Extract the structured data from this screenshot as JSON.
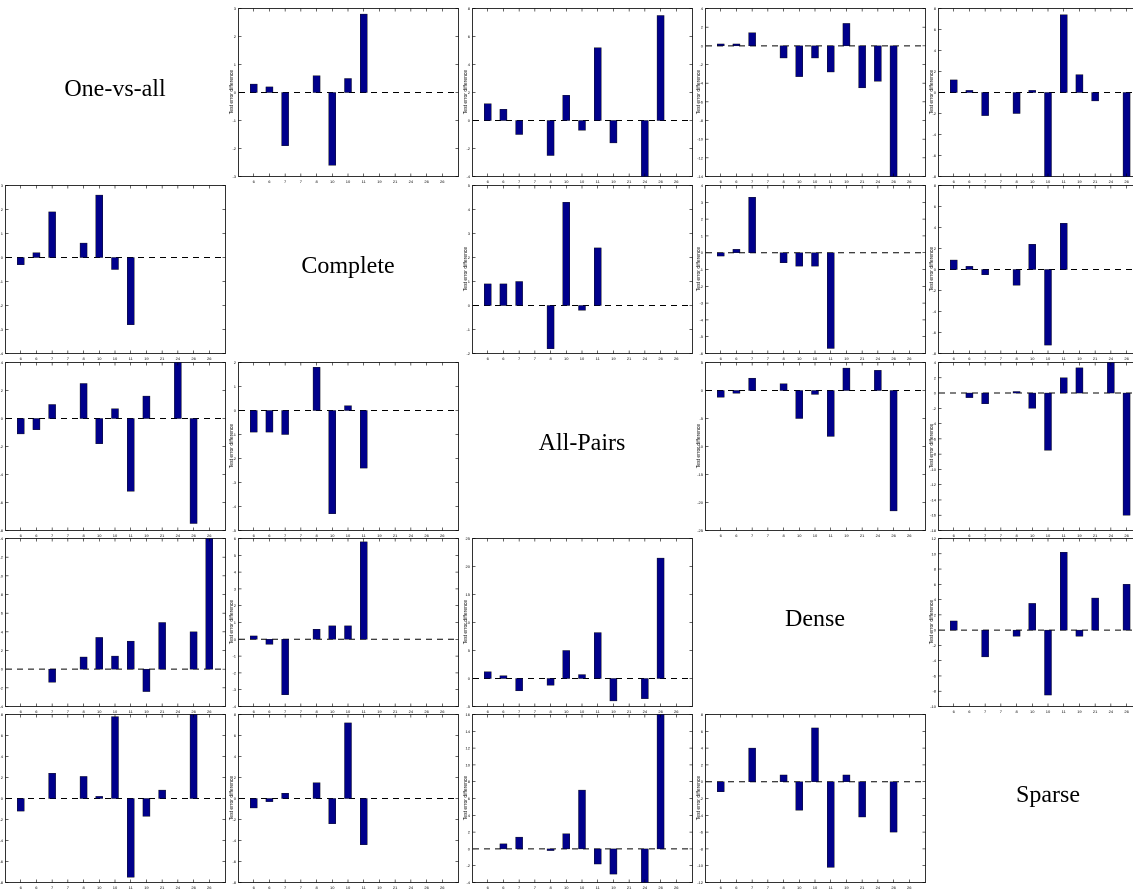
{
  "methods": [
    "One-vs-all",
    "Complete",
    "All-Pairs",
    "Dense",
    "Sparse"
  ],
  "chart_data": {
    "type": "bar",
    "layout": "5x5 pairwise matrix; diagonal cells hold method names, off-diagonal cells hold bar charts",
    "ylabel": "Test error difference",
    "categories": [
      "6",
      "6",
      "7",
      "7",
      "8",
      "10",
      "10",
      "11",
      "19",
      "21",
      "24",
      "26",
      "26"
    ],
    "grid": false,
    "bar_color": "#00008b",
    "zero_line": "dashed",
    "panels": [
      {
        "row": 0,
        "col": 1,
        "ylim": [
          -3,
          3
        ],
        "yticks": [
          -3,
          -2,
          -1,
          0,
          1,
          2,
          3
        ],
        "values": [
          0.3,
          0.2,
          -1.9,
          0,
          0.6,
          -2.6,
          0.5,
          2.8,
          0,
          0,
          0,
          0,
          0
        ]
      },
      {
        "row": 0,
        "col": 2,
        "ylim": [
          -4,
          8
        ],
        "yticks": [
          -4,
          -2,
          0,
          2,
          4,
          6,
          8
        ],
        "values": [
          1.2,
          0.8,
          -1.0,
          0,
          -2.5,
          1.8,
          -0.7,
          5.2,
          -1.6,
          0,
          -4.0,
          7.5,
          0
        ]
      },
      {
        "row": 0,
        "col": 3,
        "ylim": [
          -14,
          4
        ],
        "yticks": [
          -14,
          -12,
          -10,
          -8,
          -6,
          -4,
          -2,
          0,
          2,
          4
        ],
        "values": [
          0.2,
          0.2,
          1.4,
          0,
          -1.3,
          -3.3,
          -1.3,
          -2.8,
          2.4,
          -4.5,
          -3.8,
          -14.0,
          0
        ]
      },
      {
        "row": 0,
        "col": 4,
        "ylim": [
          -8,
          8
        ],
        "yticks": [
          -8,
          -6,
          -4,
          -2,
          0,
          2,
          4,
          6,
          8
        ],
        "values": [
          1.2,
          0.2,
          -2.2,
          0,
          -2.0,
          0.2,
          -8.0,
          7.4,
          1.7,
          -0.8,
          0,
          -8.0,
          0
        ]
      },
      {
        "row": 1,
        "col": 0,
        "ylim": [
          -4,
          3
        ],
        "yticks": [
          -4,
          -3,
          -2,
          -1,
          0,
          1,
          2,
          3
        ],
        "values": [
          -0.3,
          0.2,
          1.9,
          0,
          0.6,
          2.6,
          -0.5,
          -2.8,
          0,
          0,
          0,
          0,
          0
        ]
      },
      {
        "row": 1,
        "col": 2,
        "ylim": [
          -2,
          5
        ],
        "yticks": [
          -2,
          -1,
          0,
          1,
          2,
          3,
          4,
          5
        ],
        "values": [
          0.9,
          0.9,
          1.0,
          0,
          -1.8,
          4.3,
          -0.2,
          2.4,
          0,
          0,
          0,
          0,
          0
        ]
      },
      {
        "row": 1,
        "col": 3,
        "ylim": [
          -6,
          4
        ],
        "yticks": [
          -6,
          -5,
          -4,
          -3,
          -2,
          -1,
          0,
          1,
          2,
          3,
          4
        ],
        "values": [
          -0.2,
          0.2,
          3.3,
          0,
          -0.6,
          -0.8,
          -0.8,
          -5.7,
          0,
          0,
          0,
          0,
          0
        ]
      },
      {
        "row": 1,
        "col": 4,
        "ylim": [
          -8,
          8
        ],
        "yticks": [
          -8,
          -6,
          -4,
          -2,
          0,
          2,
          4,
          6,
          8
        ],
        "values": [
          0.9,
          0.3,
          -0.5,
          0,
          -1.5,
          2.4,
          -7.2,
          4.4,
          0,
          0,
          0,
          0,
          0
        ]
      },
      {
        "row": 2,
        "col": 0,
        "ylim": [
          -8,
          4
        ],
        "yticks": [
          -8,
          -6,
          -4,
          -2,
          0,
          2,
          4
        ],
        "values": [
          -1.1,
          -0.8,
          1.0,
          0,
          2.5,
          -1.8,
          0.7,
          -5.2,
          1.6,
          0,
          4.0,
          -7.5,
          0
        ]
      },
      {
        "row": 2,
        "col": 1,
        "ylim": [
          -5,
          2
        ],
        "yticks": [
          -5,
          -4,
          -3,
          -2,
          -1,
          0,
          1,
          2
        ],
        "values": [
          -0.9,
          -0.9,
          -1.0,
          0,
          1.8,
          -4.3,
          0.2,
          -2.4,
          0,
          0,
          0,
          0,
          0
        ]
      },
      {
        "row": 2,
        "col": 3,
        "ylim": [
          -25,
          5
        ],
        "yticks": [
          -25,
          -20,
          -15,
          -10,
          -5,
          0,
          5
        ],
        "values": [
          -1.2,
          -0.5,
          2.2,
          0,
          1.2,
          -5.0,
          -0.7,
          -8.2,
          4.0,
          0,
          3.6,
          -21.5,
          0
        ]
      },
      {
        "row": 2,
        "col": 4,
        "ylim": [
          -18,
          4
        ],
        "yticks": [
          -18,
          -16,
          -14,
          -12,
          -10,
          -8,
          -6,
          -4,
          -2,
          0,
          2,
          4
        ],
        "values": [
          0,
          -0.6,
          -1.4,
          0,
          0.2,
          -2.0,
          -7.5,
          2.0,
          3.3,
          0,
          4.0,
          -16.0,
          0
        ]
      },
      {
        "row": 3,
        "col": 0,
        "ylim": [
          -4,
          14
        ],
        "yticks": [
          -4,
          -2,
          0,
          2,
          4,
          6,
          8,
          10,
          12,
          14
        ],
        "values": [
          0,
          0,
          -1.4,
          0,
          1.3,
          3.4,
          1.4,
          3.0,
          -2.4,
          5.0,
          0,
          4.0,
          14.0
        ]
      },
      {
        "row": 3,
        "col": 1,
        "ylim": [
          -4,
          6
        ],
        "yticks": [
          -4,
          -3,
          -2,
          -1,
          0,
          1,
          2,
          3,
          4,
          5,
          6
        ],
        "values": [
          0.2,
          -0.3,
          -3.3,
          0,
          0.6,
          0.8,
          0.8,
          5.8,
          0,
          0,
          0,
          0,
          0
        ]
      },
      {
        "row": 3,
        "col": 2,
        "ylim": [
          -5,
          25
        ],
        "yticks": [
          -5,
          0,
          5,
          10,
          15,
          20,
          25
        ],
        "values": [
          1.2,
          0.5,
          -2.2,
          0,
          -1.2,
          5.0,
          0.7,
          8.2,
          -4.0,
          0,
          -3.6,
          21.5,
          0
        ]
      },
      {
        "row": 3,
        "col": 4,
        "ylim": [
          -10,
          12
        ],
        "yticks": [
          -10,
          -8,
          -6,
          -4,
          -2,
          0,
          2,
          4,
          6,
          8,
          10,
          12
        ],
        "values": [
          1.2,
          0,
          -3.5,
          0,
          -0.8,
          3.5,
          -8.5,
          10.2,
          -0.8,
          4.2,
          0,
          6.0,
          0
        ]
      },
      {
        "row": 4,
        "col": 0,
        "ylim": [
          -8,
          8
        ],
        "yticks": [
          -8,
          -6,
          -4,
          -2,
          0,
          2,
          4,
          6,
          8
        ],
        "values": [
          -1.2,
          0,
          2.4,
          0,
          2.1,
          0.2,
          7.8,
          -7.5,
          -1.7,
          0.8,
          0,
          8.0,
          0
        ]
      },
      {
        "row": 4,
        "col": 1,
        "ylim": [
          -8,
          8
        ],
        "yticks": [
          -8,
          -6,
          -4,
          -2,
          0,
          2,
          4,
          6,
          8
        ],
        "values": [
          -0.9,
          -0.3,
          0.5,
          0,
          1.5,
          -2.4,
          7.2,
          -4.4,
          0,
          0,
          0,
          0,
          0
        ]
      },
      {
        "row": 4,
        "col": 2,
        "ylim": [
          -4,
          16
        ],
        "yticks": [
          -4,
          -2,
          0,
          2,
          4,
          6,
          8,
          10,
          12,
          14,
          16
        ],
        "values": [
          0,
          0.6,
          1.4,
          0,
          -0.2,
          1.8,
          7.0,
          -1.8,
          -3.0,
          0,
          -4.0,
          16.0,
          0
        ]
      },
      {
        "row": 4,
        "col": 3,
        "ylim": [
          -12,
          8
        ],
        "yticks": [
          -12,
          -10,
          -8,
          -6,
          -4,
          -2,
          0,
          2,
          4,
          6,
          8
        ],
        "values": [
          -1.2,
          0,
          4.0,
          0,
          0.8,
          -3.4,
          6.4,
          -10.2,
          0.8,
          -4.2,
          0,
          -6.0,
          0
        ]
      }
    ]
  }
}
